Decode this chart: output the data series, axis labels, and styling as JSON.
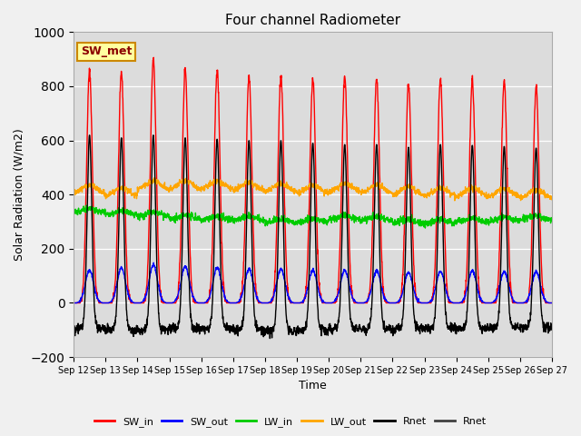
{
  "title": "Four channel Radiometer",
  "xlabel": "Time",
  "ylabel": "Solar Radiation (W/m2)",
  "ylim": [
    -200,
    1000
  ],
  "legend_label": "SW_met",
  "x_tick_labels": [
    "Sep 12",
    "Sep 13",
    "Sep 14",
    "Sep 15",
    "Sep 16",
    "Sep 17",
    "Sep 18",
    "Sep 19",
    "Sep 20",
    "Sep 21",
    "Sep 22",
    "Sep 23",
    "Sep 24",
    "Sep 25",
    "Sep 26",
    "Sep 27"
  ],
  "bg_color": "#dcdcdc",
  "fig_color": "#f0f0f0",
  "series": {
    "SW_in": {
      "color": "#ff0000"
    },
    "SW_out": {
      "color": "#0000ff"
    },
    "LW_in": {
      "color": "#00cc00"
    },
    "LW_out": {
      "color": "#ffa500"
    },
    "Rnet": {
      "color": "#000000"
    },
    "Rnet2": {
      "color": "#404040"
    }
  }
}
